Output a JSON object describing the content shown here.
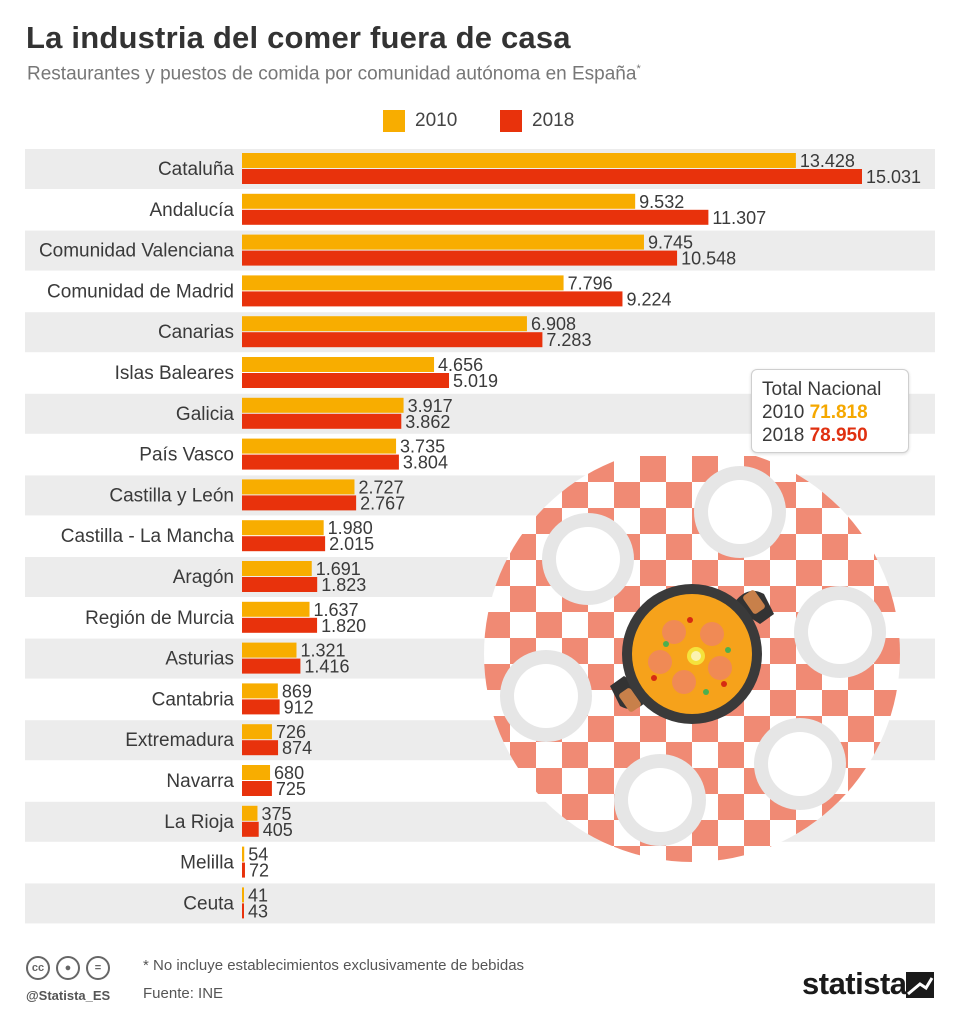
{
  "header": {
    "title": "La industria del comer fuera de casa",
    "subtitle": "Restaurantes y puestos de comida por comunidad autónoma en España",
    "subtitle_mark": "*"
  },
  "colors": {
    "s2010": "#f8ad00",
    "s2018": "#e8320c",
    "band": "#ececec"
  },
  "chart_data": {
    "type": "bar",
    "orientation": "horizontal",
    "categories": [
      "Cataluña",
      "Andalucía",
      "Comunidad Valenciana",
      "Comunidad de Madrid",
      "Canarias",
      "Islas Baleares",
      "Galicia",
      "País Vasco",
      "Castilla y León",
      "Castilla - La Mancha",
      "Aragón",
      "Región de Murcia",
      "Asturias",
      "Cantabria",
      "Extremadura",
      "Navarra",
      "La Rioja",
      "Melilla",
      "Ceuta"
    ],
    "series": [
      {
        "name": "2010",
        "values": [
          13428,
          9532,
          9745,
          7796,
          6908,
          4656,
          3917,
          3735,
          2727,
          1980,
          1691,
          1637,
          1321,
          869,
          726,
          680,
          375,
          54,
          41
        ],
        "labels": [
          "13.428",
          "9.532",
          "9.745",
          "7.796",
          "6.908",
          "4.656",
          "3.917",
          "3.735",
          "2.727",
          "1.980",
          "1.691",
          "1.637",
          "1.321",
          "869",
          "726",
          "680",
          "375",
          "54",
          "41"
        ]
      },
      {
        "name": "2018",
        "values": [
          15031,
          11307,
          10548,
          9224,
          7283,
          5019,
          3862,
          3804,
          2767,
          2015,
          1823,
          1820,
          1416,
          912,
          874,
          725,
          405,
          72,
          43
        ],
        "labels": [
          "15.031",
          "11.307",
          "10.548",
          "9.224",
          "7.283",
          "5.019",
          "3.862",
          "3.804",
          "2.767",
          "2.015",
          "1.823",
          "1.820",
          "1.416",
          "912",
          "874",
          "725",
          "405",
          "72",
          "43"
        ]
      }
    ],
    "legend_position": "top-center"
  },
  "totals": {
    "title": "Total Nacional",
    "rows": [
      {
        "year": "2010",
        "value": "71.818"
      },
      {
        "year": "2018",
        "value": "78.950"
      }
    ]
  },
  "footer": {
    "note": "* No incluye establecimientos exclusivamente de bebidas",
    "source": "Fuente: INE",
    "handle": "@Statista_ES",
    "brand": "statista",
    "cc_icons": [
      "cc-icon",
      "by-icon",
      "nd-icon"
    ]
  }
}
